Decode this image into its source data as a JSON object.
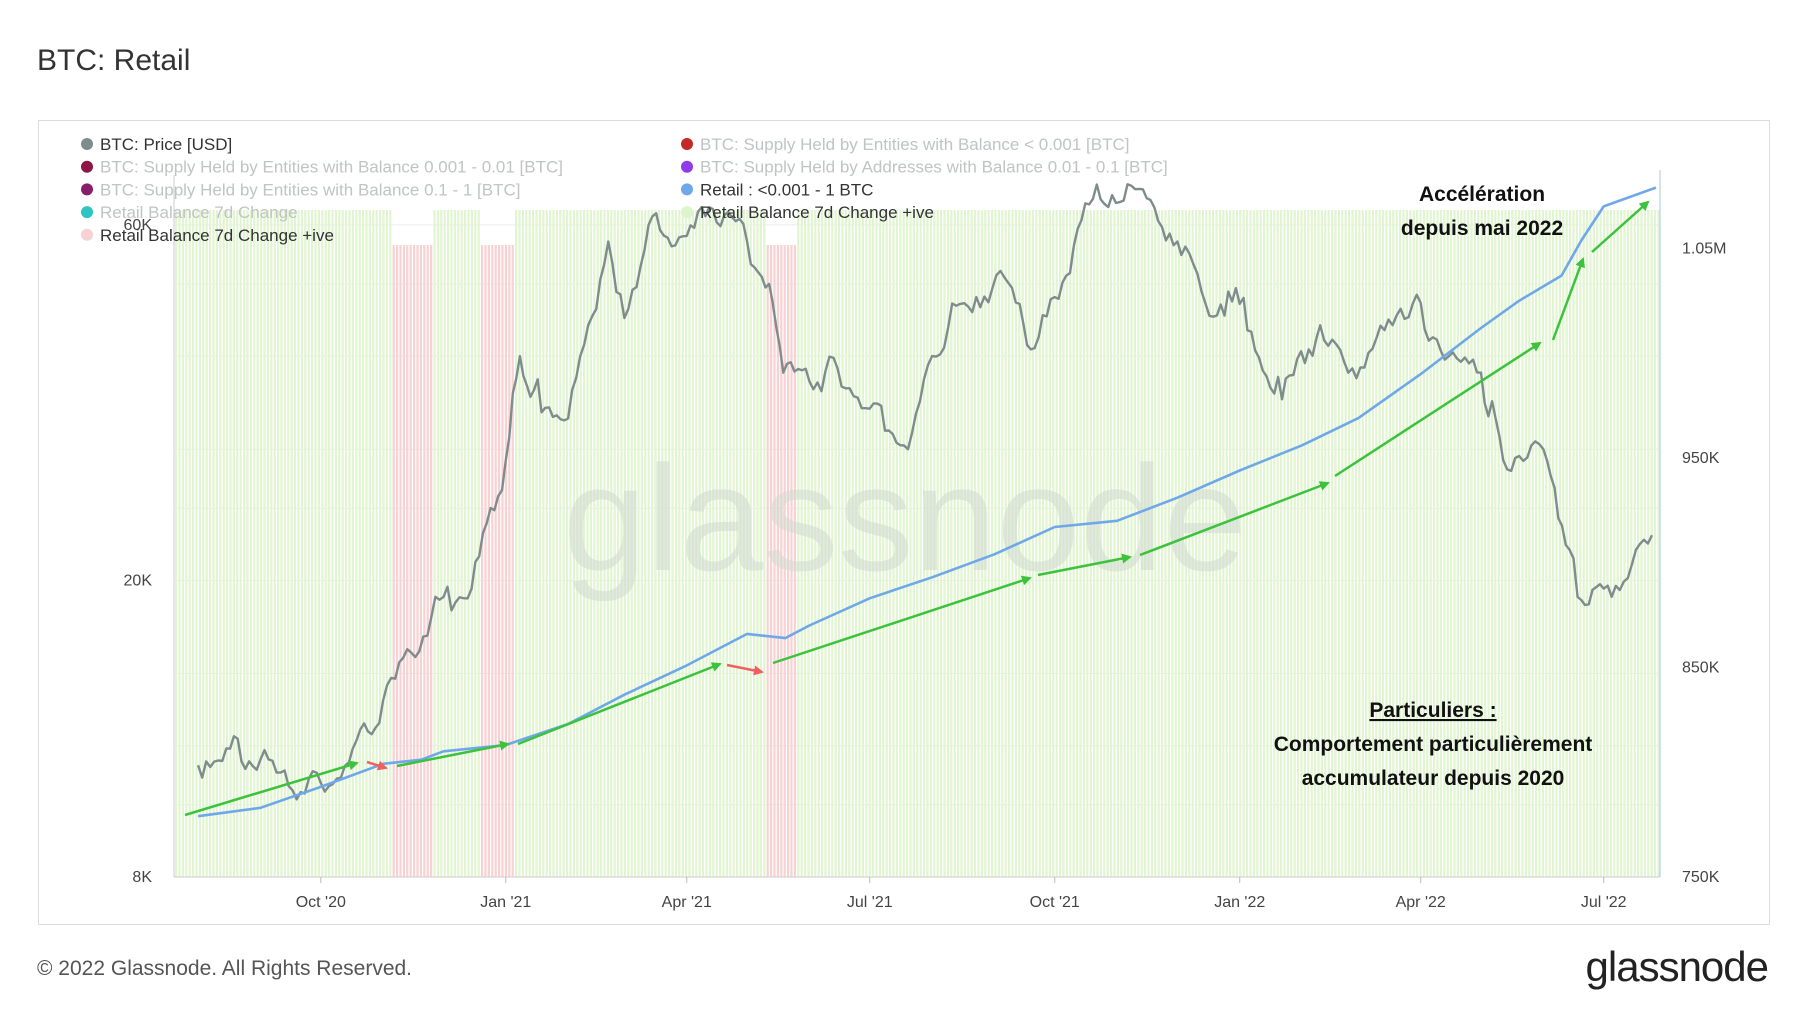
{
  "title": "BTC: Retail",
  "footer": {
    "copyright": "© 2022 Glassnode. All Rights Reserved.",
    "logo": "glassnode"
  },
  "watermark": "glassnode",
  "legend": [
    {
      "label": "BTC: Price [USD]",
      "color": "#7f8c8d",
      "active": true
    },
    {
      "label": "BTC: Supply Held by Entities with Balance < 0.001 [BTC]",
      "color": "#c62828",
      "active": false
    },
    {
      "label": "BTC: Supply Held by Entities with Balance 0.001 - 0.01 [BTC]",
      "color": "#8e1546",
      "active": false
    },
    {
      "label": "BTC: Supply Held by Addresses with Balance 0.01 - 0.1 [BTC]",
      "color": "#8e3be8",
      "active": false
    },
    {
      "label": "BTC: Supply Held by Entities with Balance 0.1 - 1 [BTC]",
      "color": "#86206b",
      "active": false
    },
    {
      "label": "Retail : <0.001 - 1 BTC",
      "color": "#6fa8e8",
      "active": true
    },
    {
      "label": "Retail Balance 7d Change",
      "color": "#2dc4c4",
      "active": false
    },
    {
      "label": "Retail Balance 7d Change +ive",
      "color": "#dcf5cc",
      "active": true
    },
    {
      "label": "Retail Balance 7d Change +ive",
      "color": "#f8d2d2",
      "active": true
    }
  ],
  "annotations": {
    "acceleration_line1": "Accélération",
    "acceleration_line2": "depuis mai 2022",
    "retail_title": "Particuliers :",
    "retail_line1": "Comportement particulièrement",
    "retail_line2": "accumulateur depuis 2020"
  },
  "chart_data": {
    "type": "line",
    "x_ticks": [
      "Oct '20",
      "Jan '21",
      "Apr '21",
      "Jul '21",
      "Oct '21",
      "Jan '22",
      "Apr '22",
      "Jul '22"
    ],
    "y_left": {
      "scale": "log",
      "ticks": [
        "8K",
        "20K",
        "60K"
      ],
      "range": [
        8000,
        70000
      ]
    },
    "y_right": {
      "ticks": [
        "750K",
        "850K",
        "950K",
        "1.05M"
      ],
      "range": [
        750000,
        1085000
      ]
    },
    "grid": true,
    "legend_position": "top-left",
    "series": [
      {
        "name": "BTC: Price [USD]",
        "axis": "left",
        "color": "#7f8c8d",
        "x": [
          "2020-08-01",
          "2020-08-15",
          "2020-09-01",
          "2020-09-15",
          "2020-10-01",
          "2020-10-15",
          "2020-11-01",
          "2020-11-15",
          "2020-12-01",
          "2020-12-15",
          "2021-01-01",
          "2021-01-08",
          "2021-01-15",
          "2021-02-01",
          "2021-02-21",
          "2021-03-01",
          "2021-03-13",
          "2021-04-01",
          "2021-04-14",
          "2021-05-01",
          "2021-05-12",
          "2021-05-19",
          "2021-06-01",
          "2021-06-15",
          "2021-07-01",
          "2021-07-20",
          "2021-08-01",
          "2021-08-15",
          "2021-09-06",
          "2021-09-21",
          "2021-10-01",
          "2021-10-20",
          "2021-11-10",
          "2021-12-01",
          "2021-12-15",
          "2022-01-01",
          "2022-01-22",
          "2022-02-10",
          "2022-02-24",
          "2022-03-28",
          "2022-04-15",
          "2022-05-01",
          "2022-05-12",
          "2022-06-01",
          "2022-06-14",
          "2022-06-18",
          "2022-07-01",
          "2022-07-15",
          "2022-07-25"
        ],
        "values": [
          11300,
          11900,
          11500,
          10600,
          10700,
          11400,
          13800,
          16000,
          19000,
          19500,
          29000,
          40000,
          36000,
          33000,
          57000,
          45000,
          60000,
          58000,
          63000,
          57000,
          50000,
          38000,
          37000,
          38500,
          34000,
          30000,
          40000,
          47000,
          51000,
          41000,
          48000,
          65000,
          67000,
          57000,
          47000,
          47000,
          35000,
          44000,
          38000,
          47000,
          40000,
          38000,
          29000,
          30000,
          22000,
          19000,
          19500,
          21000,
          23000
        ]
      },
      {
        "name": "Retail : <0.001 - 1 BTC",
        "axis": "right",
        "color": "#6fa8e8",
        "x": [
          "2020-08-01",
          "2020-09-01",
          "2020-10-01",
          "2020-11-01",
          "2020-11-20",
          "2020-12-01",
          "2021-01-01",
          "2021-02-01",
          "2021-03-01",
          "2021-04-01",
          "2021-05-01",
          "2021-05-20",
          "2021-06-01",
          "2021-07-01",
          "2021-08-01",
          "2021-09-01",
          "2021-10-01",
          "2021-11-01",
          "2021-12-01",
          "2022-01-01",
          "2022-02-01",
          "2022-03-01",
          "2022-04-01",
          "2022-05-01",
          "2022-05-20",
          "2022-06-10",
          "2022-06-20",
          "2022-07-01",
          "2022-07-27"
        ],
        "values": [
          779000,
          783000,
          793000,
          804000,
          806000,
          810000,
          813000,
          823000,
          837000,
          851000,
          866000,
          864000,
          870000,
          883000,
          893000,
          904000,
          917000,
          920000,
          931000,
          944000,
          956000,
          969000,
          990000,
          1012000,
          1025000,
          1037000,
          1054000,
          1070000,
          1079000
        ]
      },
      {
        "name": "Retail Balance 7d Change +ive",
        "axis": "bars",
        "color": "#dcf5cc",
        "negative_periods": [
          "2020-11-05/2020-11-25",
          "2020-12-18/2021-01-05",
          "2021-05-10/2021-05-25"
        ]
      }
    ]
  }
}
